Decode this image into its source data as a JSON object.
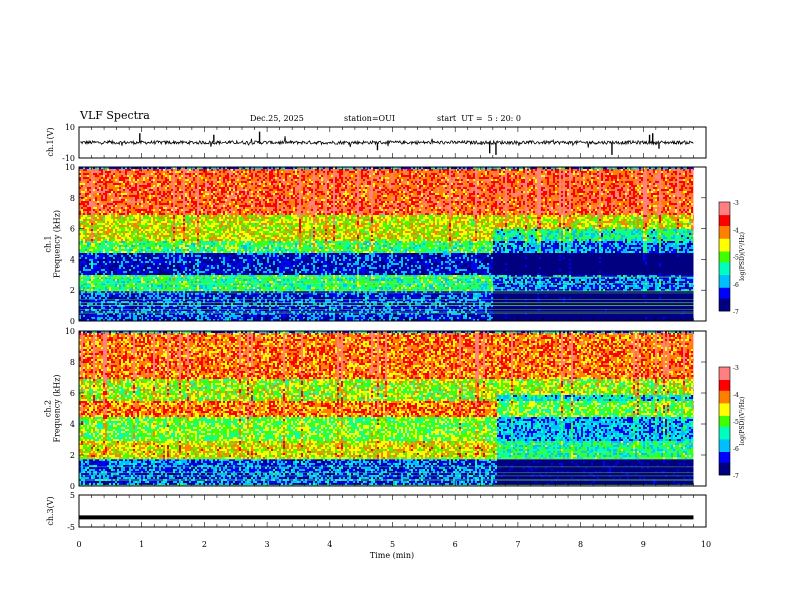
{
  "header": {
    "title": "VLF Spectra",
    "date": "Dec.25, 2025",
    "station": "station=OUI",
    "start": "start  UT =  5 : 20: 0"
  },
  "chart_data": [
    {
      "type": "line",
      "panel": "waveform-ch1",
      "ylabel": "ch.1(V)",
      "ylim": [
        -10,
        10
      ],
      "yticks": [
        "10",
        "-10"
      ],
      "xlim": [
        0,
        10
      ],
      "baseline": 0,
      "series": [
        {
          "x": [
            0.0,
            0.97,
            1.0,
            2.15,
            2.88,
            4.76,
            6.55,
            6.65,
            8.5,
            9.1,
            9.15,
            9.25,
            9.8
          ],
          "values": [
            0,
            6,
            0,
            5,
            7,
            -5,
            -7,
            -8,
            -8,
            5,
            6,
            -4,
            0
          ]
        }
      ]
    },
    {
      "type": "heatmap",
      "panel": "spectrogram-ch1",
      "ylabel": "ch.1\nFrequency (kHz)",
      "ylim": [
        0,
        10
      ],
      "yticks": [
        "0",
        "2",
        "4",
        "6",
        "8",
        "10"
      ],
      "xlim": [
        0,
        9.8
      ],
      "colorbar": {
        "label": "log(PSD)(V²/Hz)",
        "range": [
          -7,
          -3
        ],
        "ticks": [
          "-3",
          "-4",
          "-5",
          "-6",
          "-7"
        ]
      },
      "bands": [
        {
          "from_khz": 0,
          "to_khz": 2,
          "level": -6.3
        },
        {
          "from_khz": 2,
          "to_khz": 3,
          "level": -5.3
        },
        {
          "from_khz": 3,
          "to_khz": 4.5,
          "level": -6.5
        },
        {
          "from_khz": 4.5,
          "to_khz": 5.2,
          "level": -5.2
        },
        {
          "from_khz": 5.2,
          "to_khz": 7,
          "level": -4.6
        },
        {
          "from_khz": 7,
          "to_khz": 10,
          "level": -3.8
        }
      ],
      "change_time_min": 6.6
    },
    {
      "type": "heatmap",
      "panel": "spectrogram-ch2",
      "ylabel": "ch.2\nFrequency (kHz)",
      "ylim": [
        0,
        10
      ],
      "yticks": [
        "0",
        "2",
        "4",
        "6",
        "8",
        "10"
      ],
      "xlim": [
        0,
        9.8
      ],
      "colorbar": {
        "label": "log(PSD)(V²/Hz)",
        "range": [
          -7,
          -3
        ],
        "ticks": [
          "-3",
          "-4",
          "-5",
          "-6",
          "-7"
        ]
      },
      "bands": [
        {
          "from_khz": 0,
          "to_khz": 1.8,
          "level": -6.2
        },
        {
          "from_khz": 1.8,
          "to_khz": 3,
          "level": -4.5
        },
        {
          "from_khz": 3,
          "to_khz": 4.5,
          "level": -5.0
        },
        {
          "from_khz": 4.5,
          "to_khz": 5.5,
          "level": -4.1
        },
        {
          "from_khz": 5.5,
          "to_khz": 7,
          "level": -4.8
        },
        {
          "from_khz": 7,
          "to_khz": 10,
          "level": -4.0
        }
      ],
      "change_time_min": 6.65
    },
    {
      "type": "line",
      "panel": "waveform-ch3",
      "ylabel": "ch.3(V)",
      "ylim": [
        -5,
        5
      ],
      "yticks": [
        "5",
        "-5"
      ],
      "xlim": [
        0,
        10
      ],
      "series": [
        {
          "x": [
            0,
            9.8
          ],
          "values": [
            -2,
            -2
          ]
        }
      ]
    }
  ],
  "xaxis": {
    "label": "Time (min)",
    "ticks": [
      "0",
      "1",
      "2",
      "3",
      "4",
      "5",
      "6",
      "7",
      "8",
      "9",
      "10"
    ]
  },
  "colors": {
    "colormap": [
      "#000080",
      "#0000ff",
      "#00bfff",
      "#00ffbf",
      "#40ff00",
      "#ffff00",
      "#ff8000",
      "#ff0000",
      "#ff8080"
    ]
  }
}
